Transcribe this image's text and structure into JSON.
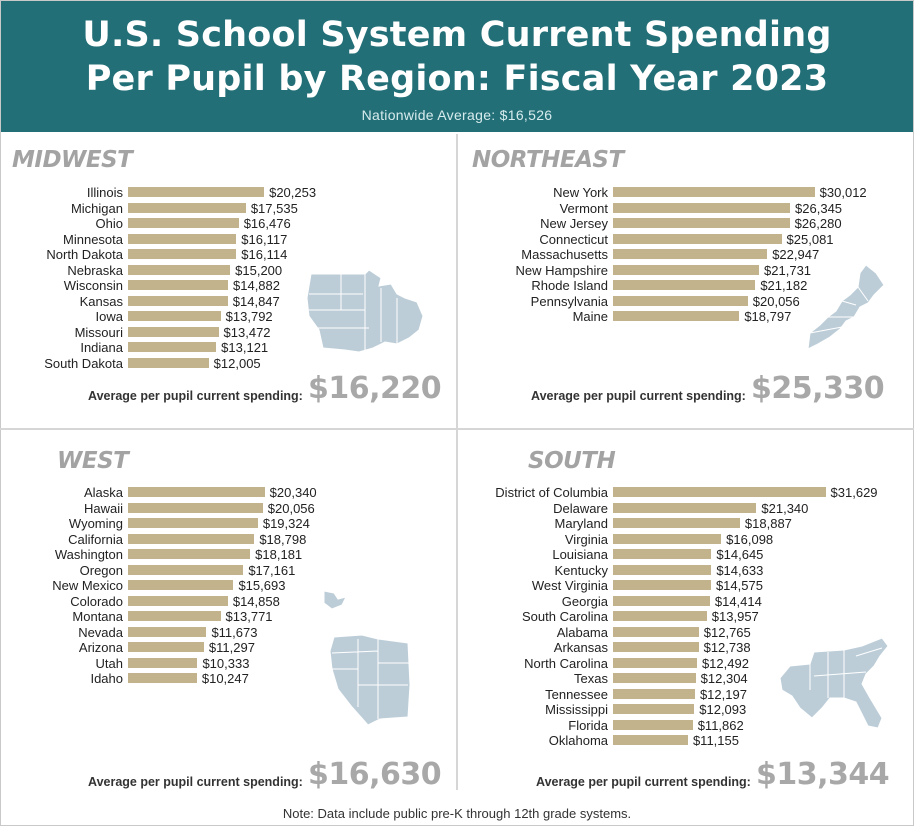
{
  "header": {
    "title_line1": "U.S. School System Current Spending",
    "title_line2": "Per Pupil by Region: Fiscal Year 2023",
    "subtitle": "Nationwide Average: $16,526"
  },
  "avg_label": "Average per pupil current spending:",
  "note": "Note: Data include public pre-K through 12th grade systems.",
  "colors": {
    "header": "#236f77",
    "bar": "#c2b38c",
    "map": "#bccdd8",
    "map_border": "#ffffff",
    "region_title": "#a3a3a3"
  },
  "chart_data": [
    {
      "type": "bar",
      "title": "MIDWEST",
      "orientation": "horizontal",
      "categories": [
        "Illinois",
        "Michigan",
        "Ohio",
        "Minnesota",
        "North Dakota",
        "Nebraska",
        "Wisconsin",
        "Kansas",
        "Iowa",
        "Missouri",
        "Indiana",
        "South Dakota"
      ],
      "values": [
        20253,
        17535,
        16476,
        16117,
        16114,
        15200,
        14882,
        14847,
        13792,
        13472,
        13121,
        12005
      ],
      "value_labels": [
        "$20,253",
        "$17,535",
        "$16,476",
        "$16,117",
        "$16,114",
        "$15,200",
        "$14,882",
        "$14,847",
        "$13,792",
        "$13,472",
        "$13,121",
        "$12,005"
      ],
      "average": "$16,220"
    },
    {
      "type": "bar",
      "title": "NORTHEAST",
      "orientation": "horizontal",
      "categories": [
        "New York",
        "Vermont",
        "New Jersey",
        "Connecticut",
        "Massachusetts",
        "New Hampshire",
        "Rhode Island",
        "Pennsylvania",
        "Maine"
      ],
      "values": [
        30012,
        26345,
        26280,
        25081,
        22947,
        21731,
        21182,
        20056,
        18797
      ],
      "value_labels": [
        "$30,012",
        "$26,345",
        "$26,280",
        "$25,081",
        "$22,947",
        "$21,731",
        "$21,182",
        "$20,056",
        "$18,797"
      ],
      "average": "$25,330"
    },
    {
      "type": "bar",
      "title": "WEST",
      "orientation": "horizontal",
      "categories": [
        "Alaska",
        "Hawaii",
        "Wyoming",
        "California",
        "Washington",
        "Oregon",
        "New Mexico",
        "Colorado",
        "Montana",
        "Nevada",
        "Arizona",
        "Utah",
        "Idaho"
      ],
      "values": [
        20340,
        20056,
        19324,
        18798,
        18181,
        17161,
        15693,
        14858,
        13771,
        11673,
        11297,
        10333,
        10247
      ],
      "value_labels": [
        "$20,340",
        "$20,056",
        "$19,324",
        "$18,798",
        "$18,181",
        "$17,161",
        "$15,693",
        "$14,858",
        "$13,771",
        "$11,673",
        "$11,297",
        "$10,333",
        "$10,247"
      ],
      "average": "$16,630"
    },
    {
      "type": "bar",
      "title": "SOUTH",
      "orientation": "horizontal",
      "categories": [
        "District of Columbia",
        "Delaware",
        "Maryland",
        "Virginia",
        "Louisiana",
        "Kentucky",
        "West Virginia",
        "Georgia",
        "South Carolina",
        "Alabama",
        "Arkansas",
        "North Carolina",
        "Texas",
        "Tennessee",
        "Mississippi",
        "Florida",
        "Oklahoma"
      ],
      "values": [
        31629,
        21340,
        18887,
        16098,
        14645,
        14633,
        14575,
        14414,
        13957,
        12765,
        12738,
        12492,
        12304,
        12197,
        12093,
        11862,
        11155
      ],
      "value_labels": [
        "$31,629",
        "$21,340",
        "$18,887",
        "$16,098",
        "$14,645",
        "$14,633",
        "$14,575",
        "$14,414",
        "$13,957",
        "$12,765",
        "$12,738",
        "$12,492",
        "$12,304",
        "$12,197",
        "$12,093",
        "$11,862",
        "$11,155"
      ],
      "average": "$13,344"
    }
  ]
}
